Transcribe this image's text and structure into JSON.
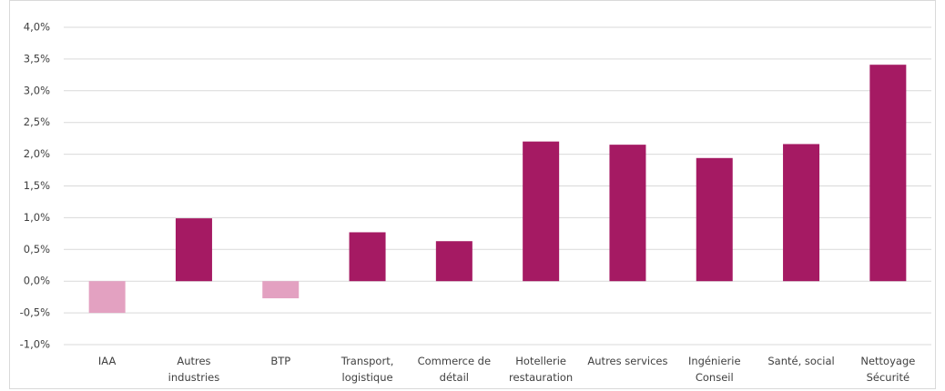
{
  "chart_data": {
    "type": "bar",
    "categories": [
      "IAA",
      "Autres\nindustries",
      "BTP",
      "Transport,\nlogistique",
      "Commerce de\ndétail",
      "Hotellerie\nrestauration",
      "Autres services",
      "Ingénierie\nConseil",
      "Santé, social",
      "Nettoyage\nSécurité"
    ],
    "values": [
      -0.5,
      0.99,
      -0.27,
      0.77,
      0.63,
      2.2,
      2.15,
      1.94,
      2.16,
      3.41
    ],
    "colors": [
      "#e3a1c1",
      "#a51a63",
      "#e3a1c1",
      "#a51a63",
      "#a51a63",
      "#a51a63",
      "#a51a63",
      "#a51a63",
      "#a51a63",
      "#a51a63"
    ],
    "ylim": [
      -1.0,
      4.0
    ],
    "yticks": [
      {
        "value": -1.0,
        "label": "-1,0%"
      },
      {
        "value": -0.5,
        "label": "-0,5%"
      },
      {
        "value": 0.0,
        "label": "0,0%"
      },
      {
        "value": 0.5,
        "label": "0,5%"
      },
      {
        "value": 1.0,
        "label": "1,0%"
      },
      {
        "value": 1.5,
        "label": "1,5%"
      },
      {
        "value": 2.0,
        "label": "2,0%"
      },
      {
        "value": 2.5,
        "label": "2,5%"
      },
      {
        "value": 3.0,
        "label": "3,0%"
      },
      {
        "value": 3.5,
        "label": "3,5%"
      },
      {
        "value": 4.0,
        "label": "4,0%"
      }
    ],
    "grid": true
  }
}
